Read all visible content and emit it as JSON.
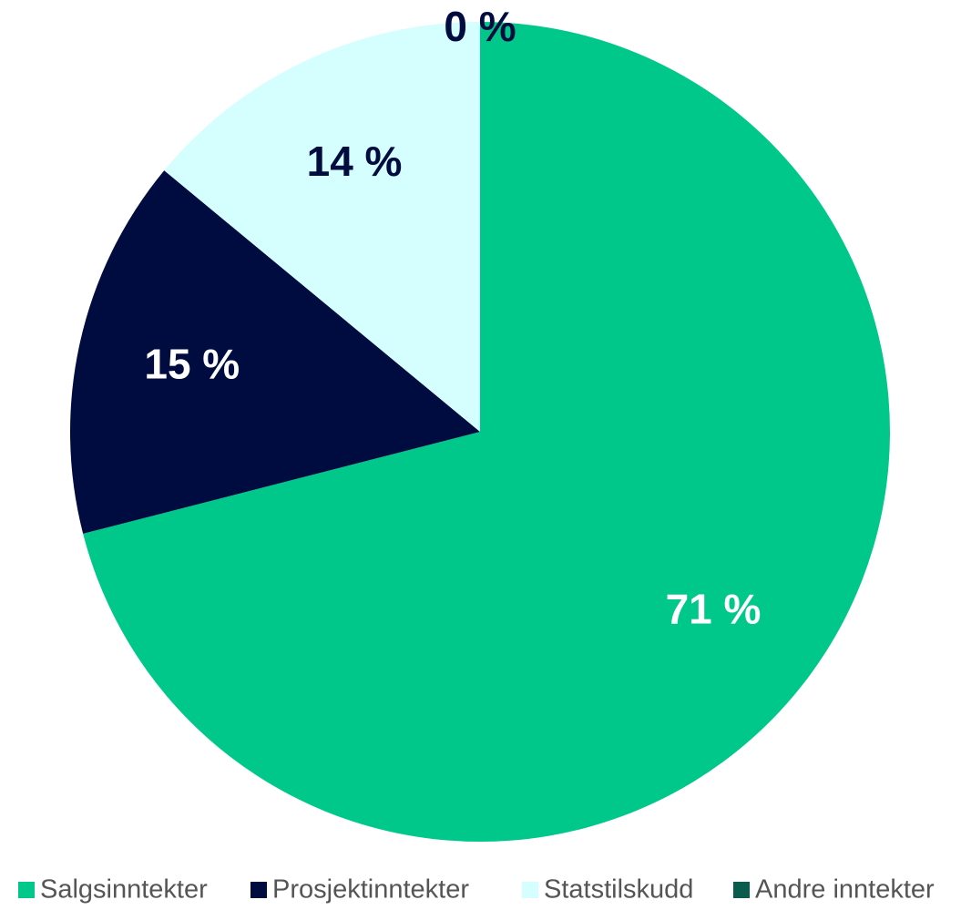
{
  "chart_data": {
    "type": "pie",
    "categories": [
      "Salgsinntekter",
      "Prosjektinntekter",
      "Statstilskudd",
      "Andre inntekter"
    ],
    "values": [
      71,
      15,
      14,
      0
    ],
    "value_labels": [
      "71 %",
      "15 %",
      "14 %",
      "0 %"
    ],
    "colors": [
      "#00c78a",
      "#000c3f",
      "#d4feff",
      "#0a5c4c"
    ],
    "legend": "bottom"
  }
}
